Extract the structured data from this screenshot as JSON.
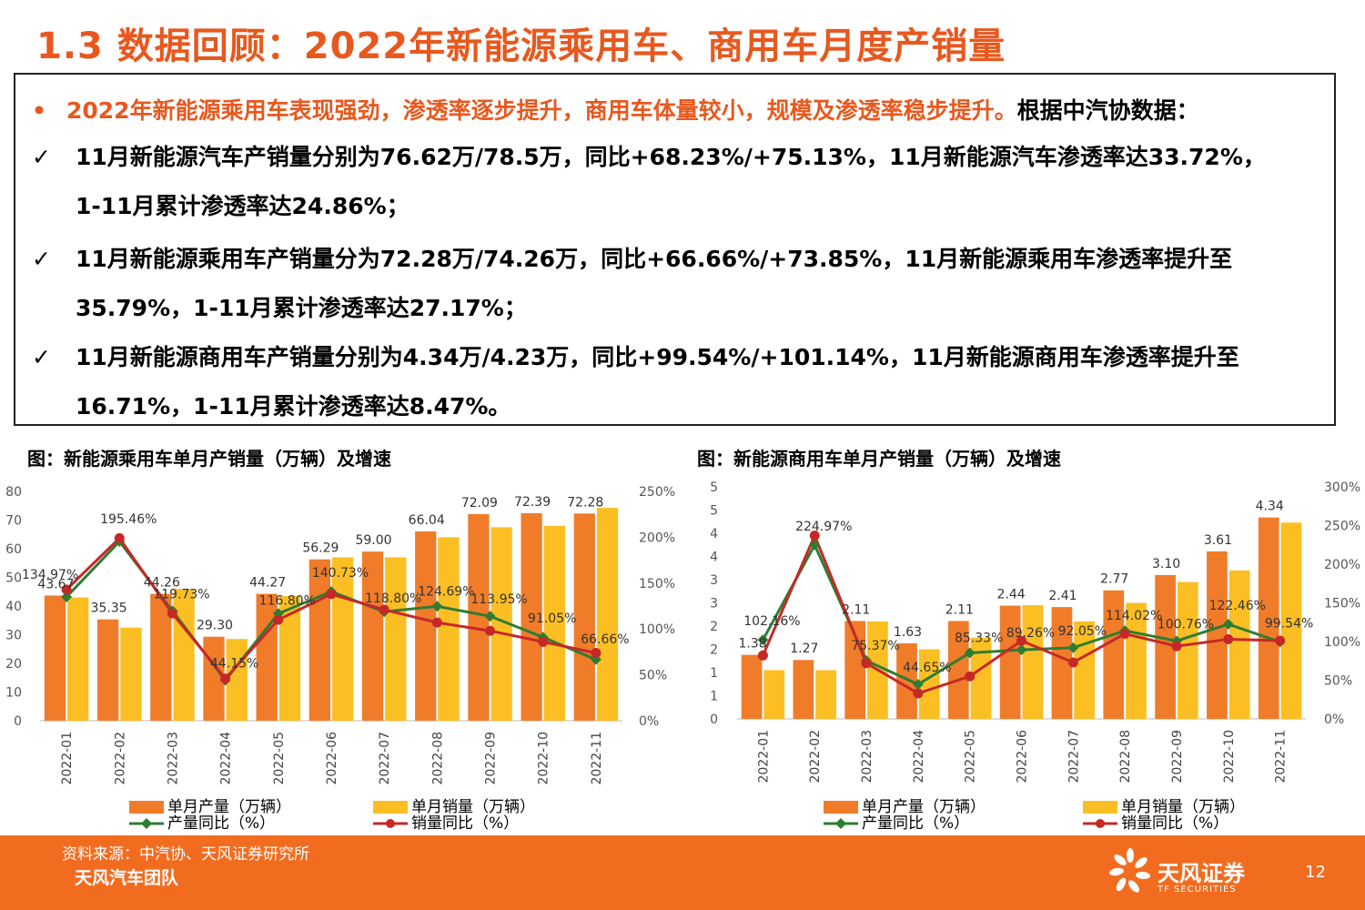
{
  "page": {
    "title": "1.3 数据回顾：2022年新能源乘用车、商用车月度产销量",
    "page_number": "12",
    "source": "资料来源：中汽协、天风证券研究所",
    "team": "天风汽车团队",
    "logo_cn": "天风证券",
    "logo_en": "TF SECURITIES"
  },
  "summary": {
    "bullet": "•",
    "headline_highlight": "2022年新能源乘用车表现强劲，渗透率逐步提升，商用车体量较小，规模及渗透率稳步提升。",
    "headline_rest": "根据中汽协数据：",
    "check": "✓",
    "items": [
      {
        "line1": "11月新能源汽车产销量分别为76.62万/78.5万，同比+68.23%/+75.13%，11月新能源汽车渗透率达33.72%，",
        "line2": "1-11月累计渗透率达24.86%；"
      },
      {
        "line1": "11月新能源乘用车产销量分为72.28万/74.26万，同比+66.66%/+73.85%，11月新能源乘用车渗透率提升至",
        "line2": "35.79%，1-11月累计渗透率达27.17%；"
      },
      {
        "line1": "11月新能源商用车产销量分别为4.34万/4.23万，同比+99.54%/+101.14%，11月新能源商用车渗透率提升至",
        "line2": "16.71%，1-11月累计渗透率达8.47%。"
      }
    ]
  },
  "chart_data": [
    {
      "type": "bar",
      "title": "图：新能源乘用车单月产销量（万辆）及增速",
      "categories": [
        "2022-01",
        "2022-02",
        "2022-03",
        "2022-04",
        "2022-05",
        "2022-06",
        "2022-07",
        "2022-08",
        "2022-09",
        "2022-10",
        "2022-11"
      ],
      "left_ticks": [
        "0",
        "10",
        "20",
        "30",
        "40",
        "50",
        "60",
        "70",
        "80"
      ],
      "right_ticks": [
        "0%",
        "50%",
        "100%",
        "150%",
        "200%",
        "250%"
      ],
      "ylim": [
        0,
        80
      ],
      "y2lim": [
        0,
        250
      ],
      "series": [
        {
          "name": "单月产量（万辆）",
          "kind": "bar",
          "color": "#f07c2a",
          "values": [
            43.67,
            35.35,
            44.26,
            29.3,
            44.27,
            56.29,
            59.0,
            66.04,
            72.09,
            72.39,
            72.28
          ],
          "labels": [
            "43.67",
            "35.35",
            "44.26",
            "29.30",
            "44.27",
            "56.29",
            "59.00",
            "66.04",
            "72.09",
            "72.39",
            "72.28"
          ]
        },
        {
          "name": "单月销量（万辆）",
          "kind": "bar",
          "color": "#fbbf24",
          "values": [
            43,
            32.5,
            46,
            28.5,
            43.5,
            57,
            57,
            64,
            67.5,
            68,
            74.26
          ]
        },
        {
          "name": "产量同比（%）",
          "kind": "line",
          "color": "#2e7d32",
          "values": [
            134.97,
            195.46,
            119.73,
            44.15,
            116.8,
            140.73,
            118.8,
            124.69,
            113.95,
            91.05,
            66.66
          ],
          "labels": [
            "134.97%",
            "195.46%",
            "119.73%",
            "44.15%",
            "116.80%",
            "140.73%",
            "118.80%",
            "124.69%",
            "113.95%",
            "91.05%",
            "66.66%"
          ]
        },
        {
          "name": "销量同比（%）",
          "kind": "line",
          "color": "#c62828",
          "values": [
            143,
            199,
            117,
            46,
            110,
            138,
            121,
            107,
            98,
            86,
            73.85
          ]
        }
      ]
    },
    {
      "type": "bar",
      "title": "图：新能源商用车单月产销量（万辆）及增速",
      "categories": [
        "2022-01",
        "2022-02",
        "2022-03",
        "2022-04",
        "2022-05",
        "2022-06",
        "2022-07",
        "2022-08",
        "2022-09",
        "2022-10",
        "2022-11"
      ],
      "left_ticks": [
        "0",
        "1",
        "1",
        "2",
        "2",
        "3",
        "3",
        "4",
        "4",
        "5",
        "5"
      ],
      "right_ticks": [
        "0%",
        "50%",
        "100%",
        "150%",
        "200%",
        "250%",
        "300%"
      ],
      "ylim": [
        0,
        5
      ],
      "y2lim": [
        0,
        300
      ],
      "series": [
        {
          "name": "单月产量（万辆）",
          "kind": "bar",
          "color": "#f07c2a",
          "values": [
            1.38,
            1.27,
            2.11,
            1.63,
            2.11,
            2.44,
            2.41,
            2.77,
            3.1,
            3.61,
            4.34
          ],
          "labels": [
            "1.38",
            "1.27",
            "2.11",
            "1.63",
            "2.11",
            "2.44",
            "2.41",
            "2.77",
            "3.10",
            "3.61",
            "4.34"
          ]
        },
        {
          "name": "单月销量（万辆）",
          "kind": "bar",
          "color": "#fbbf24",
          "values": [
            1.05,
            1.05,
            2.1,
            1.5,
            1.75,
            2.45,
            2.1,
            2.5,
            2.95,
            3.2,
            4.23
          ]
        },
        {
          "name": "产量同比（%）",
          "kind": "line",
          "color": "#2e7d32",
          "values": [
            102.16,
            224.97,
            75.37,
            44.65,
            85.33,
            89.26,
            92.05,
            114.02,
            100.76,
            122.46,
            99.54
          ],
          "labels": [
            "102.16%",
            "224.97%",
            "75.37%",
            "44.65%",
            "85.33%",
            "89.26%",
            "92.05%",
            "114.02%",
            "100.76%",
            "122.46%",
            "99.54%"
          ]
        },
        {
          "name": "销量同比（%）",
          "kind": "line",
          "color": "#c62828",
          "values": [
            82,
            237,
            72,
            33,
            55,
            101,
            73,
            110,
            94,
            103,
            101.14
          ]
        }
      ]
    }
  ]
}
